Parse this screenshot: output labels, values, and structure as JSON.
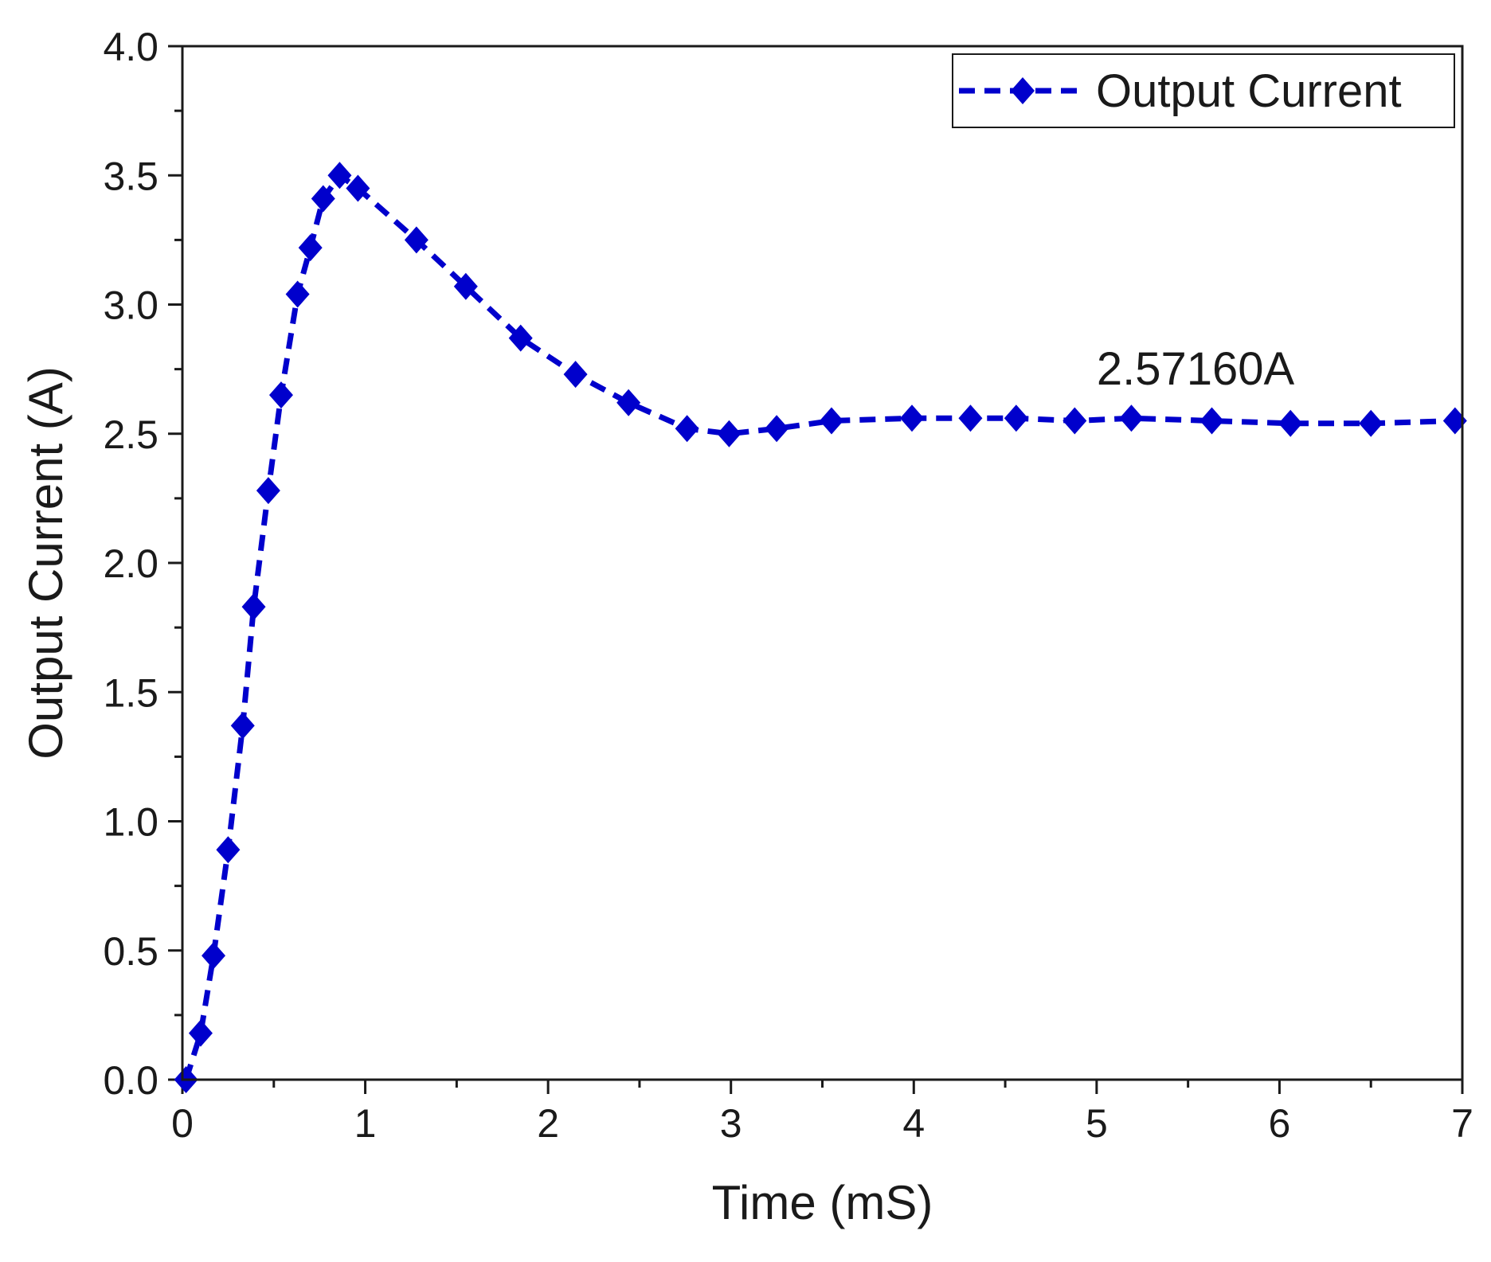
{
  "chart_data": {
    "type": "line",
    "title": "",
    "xlabel": "Time (mS)",
    "ylabel": "Output Current (A)",
    "xlim": [
      0,
      7
    ],
    "ylim": [
      0,
      4
    ],
    "xticks": [
      0,
      1,
      2,
      3,
      4,
      5,
      6,
      7
    ],
    "xtick_labels": [
      "0",
      "1",
      "2",
      "3",
      "4",
      "5",
      "6",
      "7"
    ],
    "yticks": [
      0,
      0.5,
      1,
      1.5,
      2,
      2.5,
      3,
      3.5,
      4
    ],
    "ytick_labels": [
      "0.0",
      "0.5",
      "1.0",
      "1.5",
      "2.0",
      "2.5",
      "3.0",
      "3.5",
      "4.0"
    ],
    "grid": false,
    "legend_position": "top-right",
    "series": [
      {
        "name": "Output Current",
        "color": "#0000cc",
        "marker": "diamond",
        "line_style": "dashed",
        "x": [
          0.02,
          0.1,
          0.17,
          0.25,
          0.33,
          0.39,
          0.47,
          0.54,
          0.63,
          0.7,
          0.77,
          0.86,
          0.96,
          1.28,
          1.55,
          1.85,
          2.15,
          2.44,
          2.76,
          2.99,
          3.25,
          3.55,
          3.99,
          4.31,
          4.56,
          4.88,
          5.19,
          5.63,
          6.06,
          6.5,
          6.96
        ],
        "y": [
          0.0,
          0.18,
          0.48,
          0.89,
          1.37,
          1.83,
          2.28,
          2.65,
          3.04,
          3.22,
          3.41,
          3.5,
          3.45,
          3.25,
          3.07,
          2.87,
          2.73,
          2.62,
          2.52,
          2.5,
          2.52,
          2.55,
          2.56,
          2.56,
          2.56,
          2.55,
          2.56,
          2.55,
          2.54,
          2.54,
          2.55
        ]
      }
    ],
    "annotations": [
      {
        "text": "2.57160A",
        "x": 5.0,
        "y": 2.69
      }
    ]
  }
}
